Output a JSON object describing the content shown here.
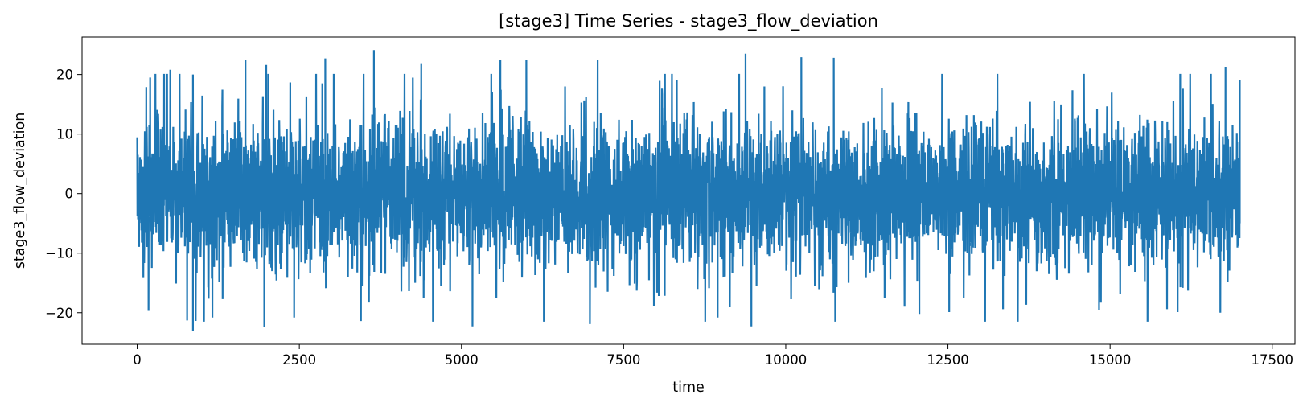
{
  "chart_data": {
    "type": "line",
    "title": "[stage3] Time Series - stage3_flow_deviation",
    "xlabel": "time",
    "ylabel": "stage3_flow_deviation",
    "xlim": [
      -850,
      17850
    ],
    "ylim": [
      -25.3,
      26.3
    ],
    "xticks": [
      0,
      2500,
      5000,
      7500,
      10000,
      12500,
      15000,
      17500
    ],
    "xtick_labels": [
      "0",
      "2500",
      "5000",
      "7500",
      "10000",
      "12500",
      "15000",
      "17500"
    ],
    "yticks": [
      -20,
      -10,
      0,
      10,
      20
    ],
    "ytick_labels": [
      "−20",
      "−10",
      "0",
      "10",
      "20"
    ],
    "grid": false,
    "legend": "none",
    "series": [
      {
        "color": "#1f77b4",
        "x_range": [
          0,
          17000
        ],
        "min": -23.0,
        "max": 24.1,
        "sample_extremes": [
          {
            "x": 140,
            "y": 17.9
          },
          {
            "x": 175,
            "y": -19.7
          },
          {
            "x": 200,
            "y": 19.5
          },
          {
            "x": 510,
            "y": 20.8
          },
          {
            "x": 600,
            "y": -15.1
          },
          {
            "x": 770,
            "y": -21.3
          },
          {
            "x": 860,
            "y": -23.0
          },
          {
            "x": 860,
            "y": 20.0
          },
          {
            "x": 1160,
            "y": -20.8
          },
          {
            "x": 1670,
            "y": 22.4
          },
          {
            "x": 1960,
            "y": -22.4
          },
          {
            "x": 1990,
            "y": 21.6
          },
          {
            "x": 2420,
            "y": -20.8
          },
          {
            "x": 2900,
            "y": 22.7
          },
          {
            "x": 3450,
            "y": -21.4
          },
          {
            "x": 3650,
            "y": 24.1
          },
          {
            "x": 4380,
            "y": 21.9
          },
          {
            "x": 5170,
            "y": -22.3
          },
          {
            "x": 5600,
            "y": 22.4
          },
          {
            "x": 6000,
            "y": 22.4
          },
          {
            "x": 6980,
            "y": -21.9
          },
          {
            "x": 7100,
            "y": 22.5
          },
          {
            "x": 8950,
            "y": -20.8
          },
          {
            "x": 9380,
            "y": 23.5
          },
          {
            "x": 9470,
            "y": -22.3
          },
          {
            "x": 10240,
            "y": 22.9
          },
          {
            "x": 10740,
            "y": 22.8
          },
          {
            "x": 12060,
            "y": -20.2
          },
          {
            "x": 12520,
            "y": -19.9
          },
          {
            "x": 13350,
            "y": -19.4
          },
          {
            "x": 14830,
            "y": -19.5
          },
          {
            "x": 16700,
            "y": -20.0
          },
          {
            "x": 16780,
            "y": 21.3
          },
          {
            "x": 17000,
            "y": 19.0
          }
        ]
      }
    ]
  }
}
